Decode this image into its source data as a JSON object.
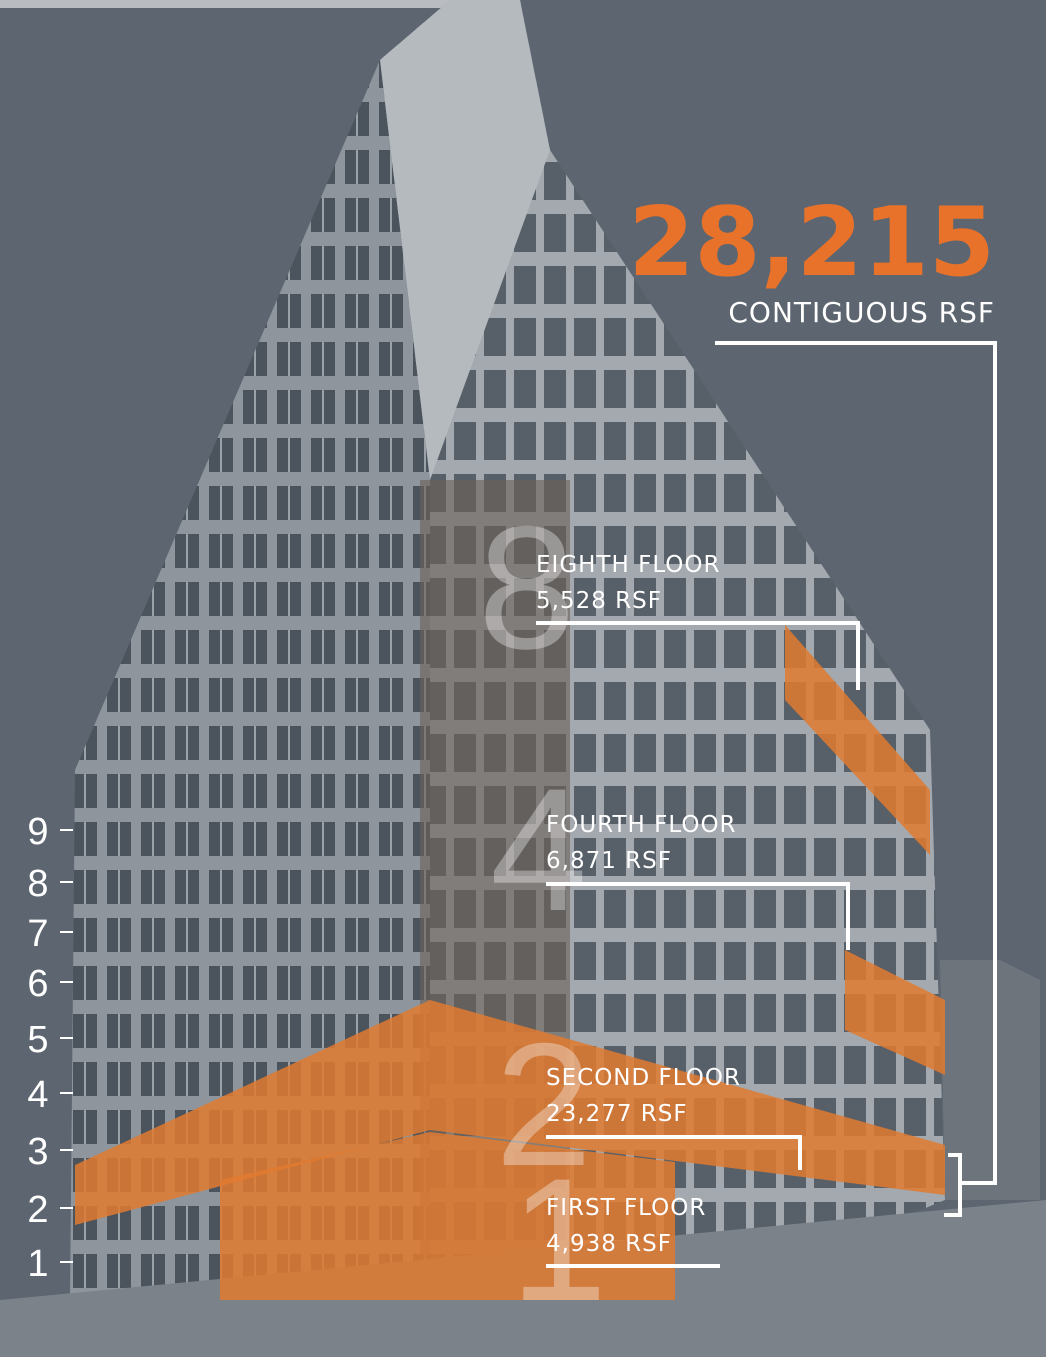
{
  "headline": {
    "value": "28,215",
    "label": "CONTIGUOUS RSF"
  },
  "floors": [
    {
      "numeral": "8",
      "name": "EIGHTH FLOOR",
      "area": "5,528 RSF"
    },
    {
      "numeral": "4",
      "name": "FOURTH FLOOR",
      "area": "6,871 RSF"
    },
    {
      "numeral": "2",
      "name": "SECOND FLOOR",
      "area": "23,277 RSF"
    },
    {
      "numeral": "1",
      "name": "FIRST FLOOR",
      "area": "4,938 RSF"
    }
  ],
  "floor_scale": [
    "9",
    "8",
    "7",
    "6",
    "5",
    "4",
    "3",
    "2",
    "1"
  ]
}
